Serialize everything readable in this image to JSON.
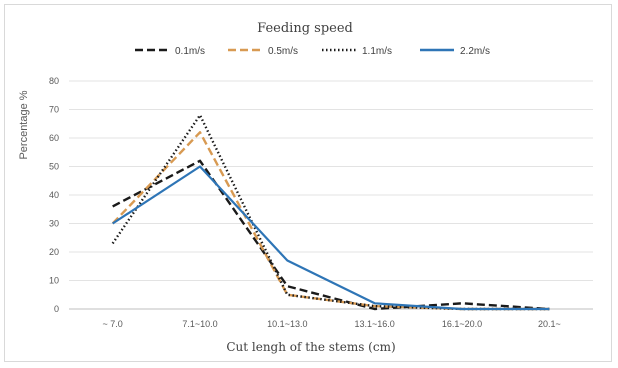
{
  "chart_data": {
    "type": "line",
    "legend_title": "Feeding speed",
    "legend_placement": "top-center",
    "xlabel": "Cut lengh  of the stems (cm)",
    "ylabel": "Percentage %",
    "categories": [
      "~ 7.0",
      "7.1~10.0",
      "10.1~13.0",
      "13.1~16.0",
      "16.1~20.0",
      "20.1~"
    ],
    "ylim": [
      0,
      80
    ],
    "yticks": [
      0,
      10,
      20,
      30,
      40,
      50,
      60,
      70,
      80
    ],
    "grid": "horizontal",
    "series": [
      {
        "name": "0.1m/s",
        "color": "#1a1a1a",
        "style": "dashed",
        "values": [
          36,
          52,
          8,
          0,
          2,
          0
        ]
      },
      {
        "name": "0.5m/s",
        "color": "#d89a52",
        "style": "dashed",
        "values": [
          30,
          62,
          5,
          1,
          0,
          0
        ]
      },
      {
        "name": "1.1m/s",
        "color": "#1a1a1a",
        "style": "dotted",
        "values": [
          23,
          68,
          5,
          1,
          0,
          0
        ]
      },
      {
        "name": "2.2m/s",
        "color": "#2e75b6",
        "style": "solid",
        "values": [
          30,
          50,
          17,
          2,
          0,
          0
        ]
      }
    ]
  }
}
